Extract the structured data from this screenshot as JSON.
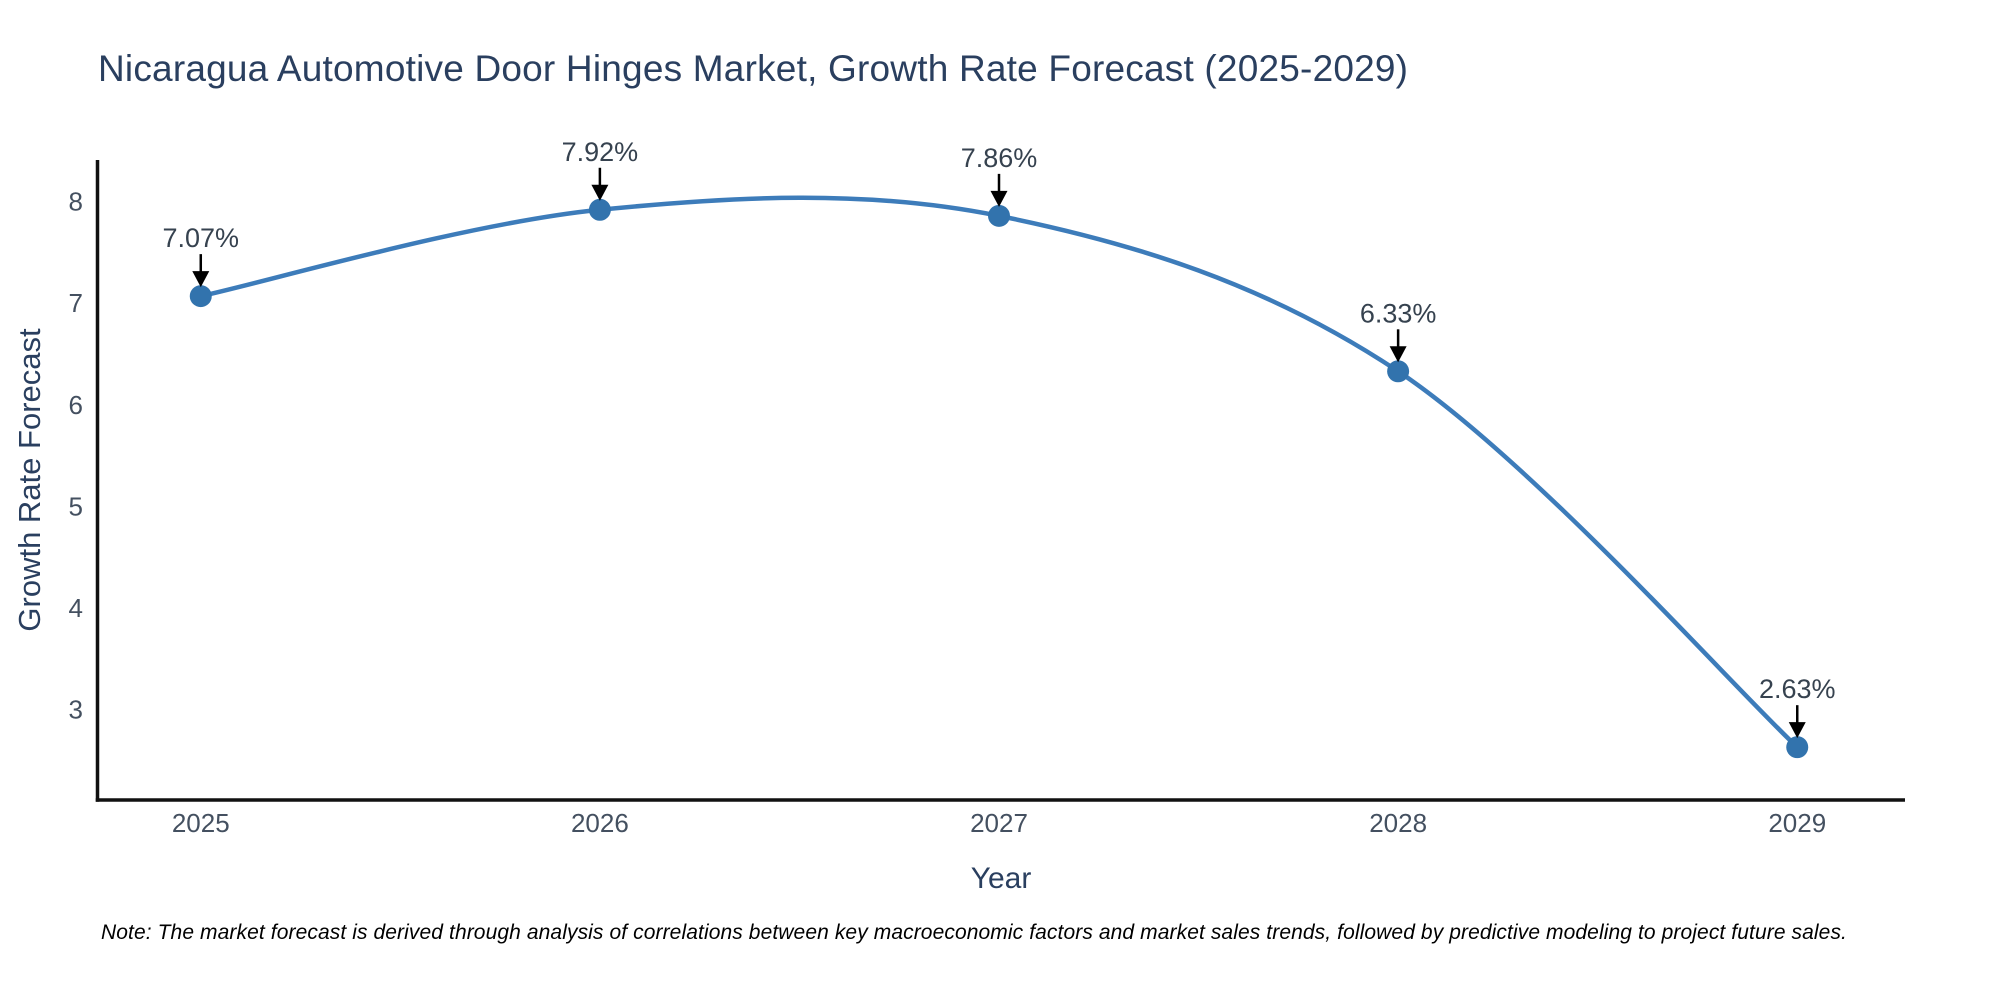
{
  "title": "Nicaragua Automotive Door Hinges Market, Growth Rate Forecast (2025-2029)",
  "note": "Note: The market forecast is derived through analysis of correlations between key macroeconomic factors and market sales trends, followed by predictive modeling to project future sales.",
  "chart_data": {
    "type": "line",
    "line_shape": "spline",
    "title": "Nicaragua Automotive Door Hinges Market, Growth Rate Forecast (2025-2029)",
    "categories": [
      "2025",
      "2026",
      "2027",
      "2028",
      "2029"
    ],
    "x": [
      2025,
      2026,
      2027,
      2028,
      2029
    ],
    "series": [
      {
        "name": "Growth Rate Forecast",
        "values": [
          7.07,
          7.92,
          7.86,
          6.33,
          2.63
        ]
      }
    ],
    "point_labels": [
      "7.07%",
      "7.92%",
      "7.86%",
      "6.33%",
      "2.63%"
    ],
    "xlabel": "Year",
    "ylabel": "Growth Rate Forecast",
    "yticks": [
      3,
      4,
      5,
      6,
      7,
      8
    ],
    "ylim": [
      2.11,
      8.41
    ],
    "xlim": [
      2024.74,
      2029.27
    ],
    "grid": false,
    "legend": "none",
    "annotations_have_arrows": true
  },
  "colors": {
    "background": "#ffffff",
    "line": "#3d7cba",
    "marker": "#3273ad",
    "axis": "#111111",
    "title_text": "#2a3f5f",
    "axis_title_text": "#2a3f5f",
    "tick_text": "#445060",
    "annotation_text": "#36424f",
    "arrow": "#000000",
    "note_text": "#000000"
  }
}
